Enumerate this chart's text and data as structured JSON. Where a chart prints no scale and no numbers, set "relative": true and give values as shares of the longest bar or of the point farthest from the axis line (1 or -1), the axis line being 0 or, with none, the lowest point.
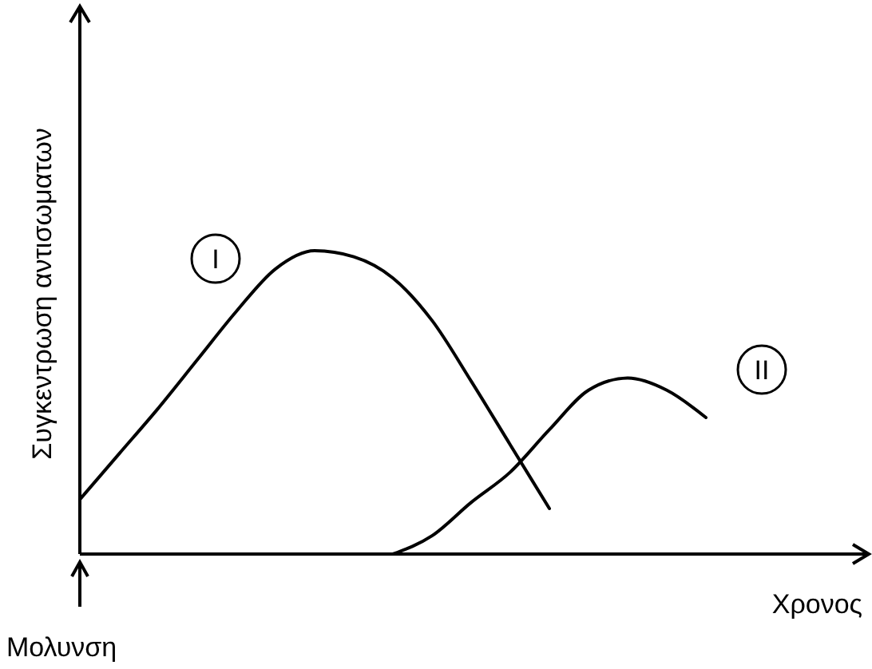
{
  "chart_data": {
    "type": "line",
    "relative": true,
    "xlabel": "Χρονος",
    "ylabel": "Συγκεντρωση αντισωματων",
    "annotations": [
      "Μολυνση"
    ],
    "categories": [
      null,
      null,
      null,
      null,
      null,
      null,
      null,
      null,
      null,
      null,
      null,
      null,
      null,
      null,
      null,
      null,
      null,
      null,
      null,
      null,
      null
    ],
    "series": [
      {
        "name": "I",
        "color": "#000000",
        "values": [
          0.18,
          0.33,
          0.48,
          0.64,
          0.8,
          0.94,
          1.0,
          0.98,
          0.91,
          0.77,
          0.57,
          0.36,
          0.15,
          null,
          null,
          null,
          null,
          null,
          null,
          null,
          null
        ]
      },
      {
        "name": "II",
        "color": "#000000",
        "values": [
          null,
          null,
          null,
          null,
          null,
          null,
          null,
          null,
          0,
          0.06,
          0.17,
          0.27,
          0.41,
          0.54,
          0.58,
          0.54,
          0.45,
          null,
          null,
          null,
          null
        ]
      }
    ]
  }
}
